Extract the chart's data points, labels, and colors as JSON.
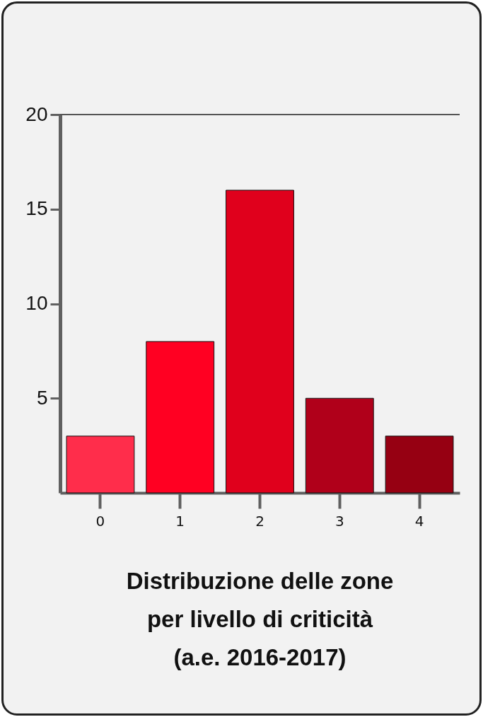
{
  "chart_data": {
    "type": "bar",
    "title": "Distribuzione delle zone\nper livello di criticità\n(a.e. 2016-2017)",
    "categories": [
      "0",
      "1",
      "2",
      "3",
      "4"
    ],
    "values": [
      3,
      8,
      16,
      5,
      3
    ],
    "colors": [
      "#ff2d4b",
      "#ff0022",
      "#e0001c",
      "#b0001a",
      "#960012"
    ],
    "ylim": [
      0,
      20
    ],
    "yticks": [
      5,
      10,
      15,
      20
    ],
    "ref_lines": [
      {
        "axis": "y",
        "value": 20,
        "color": "#555555"
      }
    ]
  }
}
